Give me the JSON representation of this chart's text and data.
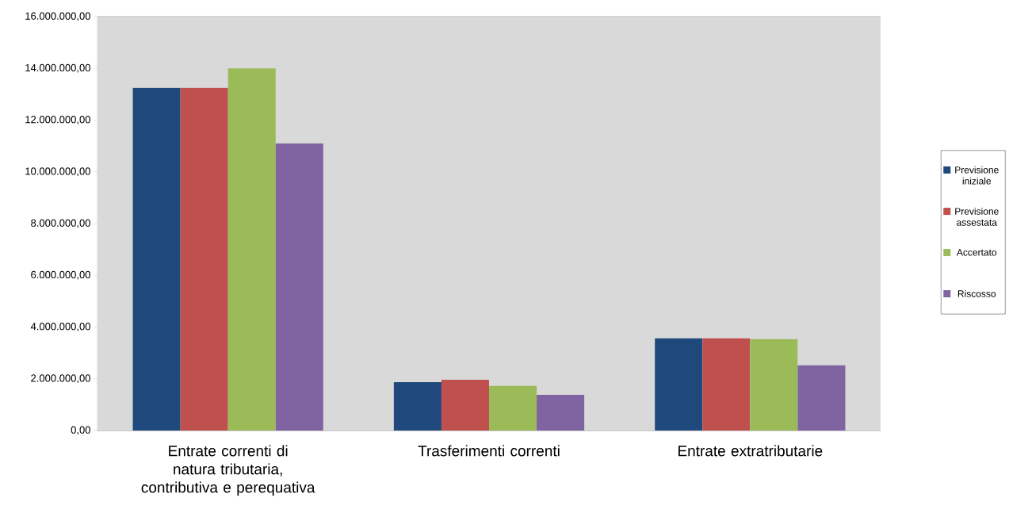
{
  "chart_data": {
    "type": "bar",
    "categories": [
      "Entrate correnti di natura tributaria, contributiva e perequativa",
      "Trasferimenti correnti",
      "Entrate extratributarie"
    ],
    "series": [
      {
        "name": "Previsione iniziale",
        "color": "#1f497d",
        "values": [
          13250000,
          1870000,
          3560000
        ]
      },
      {
        "name": "Previsione assestata",
        "color": "#c0504d",
        "values": [
          13250000,
          1960000,
          3560000
        ]
      },
      {
        "name": "Accertato",
        "color": "#9bbb59",
        "values": [
          14000000,
          1720000,
          3530000
        ]
      },
      {
        "name": "Riscosso",
        "color": "#8064a2",
        "values": [
          11100000,
          1380000,
          2520000
        ]
      }
    ],
    "ylim": [
      0,
      16000000
    ],
    "yticks": [
      {
        "value": 0,
        "label": "0,00"
      },
      {
        "value": 2000000,
        "label": "2.000.000,00"
      },
      {
        "value": 4000000,
        "label": "4.000.000,00"
      },
      {
        "value": 6000000,
        "label": "6.000.000,00"
      },
      {
        "value": 8000000,
        "label": "8.000.000,00"
      },
      {
        "value": 10000000,
        "label": "10.000.000,00"
      },
      {
        "value": 12000000,
        "label": "12.000.000,00"
      },
      {
        "value": 14000000,
        "label": "14.000.000,00"
      },
      {
        "value": 16000000,
        "label": "16.000.000,00"
      }
    ],
    "grid": "y",
    "legend": "right"
  }
}
